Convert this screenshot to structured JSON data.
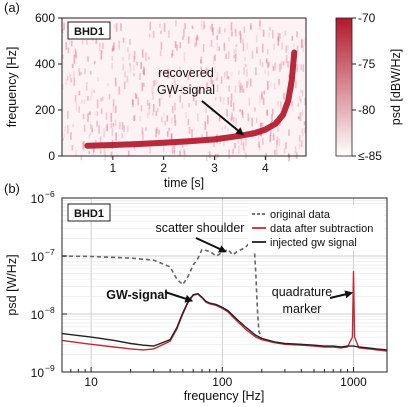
{
  "chart_data": [
    {
      "type": "heatmap",
      "panel_label": "(a)",
      "badge": "BHD1",
      "xlabel": "time [s]",
      "ylabel": "frequency [Hz]",
      "x_ticks": [
        "1",
        "2",
        "3",
        "4"
      ],
      "x_tick_values": [
        1,
        2,
        3,
        4
      ],
      "y_ticks": [
        "0",
        "200",
        "400",
        "600"
      ],
      "y_tick_values": [
        0,
        200,
        400,
        600
      ],
      "xlim": [
        0,
        4.8
      ],
      "ylim": [
        0,
        600
      ],
      "annotation": {
        "lines": [
          "recovered",
          "GW-signal"
        ],
        "points_to": {
          "time": 3.55,
          "frequency": 95
        }
      },
      "chirp_track": {
        "time": [
          0.5,
          1.0,
          1.5,
          2.0,
          2.5,
          3.0,
          3.5,
          3.8,
          4.0,
          4.2,
          4.35,
          4.45,
          4.52,
          4.57
        ],
        "frequency": [
          45,
          48,
          52,
          58,
          64,
          72,
          88,
          100,
          115,
          140,
          180,
          240,
          330,
          450
        ]
      },
      "colorbar": {
        "label": "psd [dBW/Hz]",
        "ticks": [
          "-70",
          "-75",
          "-80",
          "≤-85"
        ],
        "tick_values": [
          -70,
          -75,
          -80,
          -85
        ],
        "range": [
          -85,
          -70
        ],
        "color_low": "#ffffff",
        "color_high": "#b2182b"
      }
    },
    {
      "type": "line",
      "panel_label": "(b)",
      "badge": "BHD1",
      "xlabel": "frequency [Hz]",
      "ylabel": "psd [W/Hz]",
      "x_scale": "log",
      "y_scale": "log",
      "xlim": [
        6,
        1800
      ],
      "ylim": [
        1e-09,
        1e-06
      ],
      "x_ticks": [
        "10",
        "100",
        "1000"
      ],
      "x_tick_values": [
        10,
        100,
        1000
      ],
      "y_ticks": [
        "10",
        "10",
        "10",
        "10"
      ],
      "y_tick_exponents": [
        "−9",
        "−8",
        "−7",
        "−6"
      ],
      "y_tick_values": [
        1e-09,
        1e-08,
        1e-07,
        1e-06
      ],
      "legend_position": "top-right",
      "series": [
        {
          "name": "original data",
          "color": "#666666",
          "dash": "dashed",
          "x": [
            6,
            10,
            20,
            30,
            40,
            45,
            50,
            55,
            60,
            65,
            70,
            80,
            90,
            100,
            110,
            120,
            130,
            150,
            165,
            175,
            180,
            185,
            190,
            200
          ],
          "y": [
            1e-07,
            9.8e-08,
            9.2e-08,
            8.5e-08,
            6.5e-08,
            4e-08,
            3.2e-08,
            4.5e-08,
            7e-08,
            9e-08,
            1.3e-07,
            1.2e-07,
            1e-07,
            1.15e-07,
            1.3e-07,
            1.05e-07,
            1.2e-07,
            1.4e-07,
            1.8e-07,
            1.5e-07,
            5e-08,
            1.2e-08,
            5e-09,
            4e-09
          ]
        },
        {
          "name": "data after subtraction",
          "color": "#c62a35",
          "dash": "solid",
          "x": [
            6,
            10,
            15,
            20,
            25,
            30,
            40,
            45,
            50,
            55,
            60,
            65,
            70,
            75,
            80,
            90,
            100,
            110,
            120,
            130,
            150,
            180,
            200,
            250,
            300,
            400,
            500,
            600,
            700,
            800,
            900,
            980,
            1000,
            1020,
            1100,
            1300,
            1500,
            1800
          ],
          "y": [
            3.5e-09,
            3e-09,
            2.7e-09,
            2.5e-09,
            2.4e-09,
            2.5e-09,
            3.4e-09,
            5.5e-09,
            1e-08,
            1.6e-08,
            2.1e-08,
            2.2e-08,
            1.9e-08,
            1.6e-08,
            1.5e-08,
            1.4e-08,
            1.25e-08,
            1.1e-08,
            9e-09,
            7.5e-09,
            5.5e-09,
            4e-09,
            3.6e-09,
            3.2e-09,
            3e-09,
            2.9e-09,
            2.8e-09,
            2.7e-09,
            2.7e-09,
            2.6e-09,
            2.7e-09,
            4e-09,
            5.5e-08,
            4e-09,
            2.6e-09,
            2.5e-09,
            2.4e-09,
            2.3e-09
          ]
        },
        {
          "name": "injected gw signal",
          "color": "#222222",
          "dash": "solid",
          "x": [
            6,
            10,
            15,
            20,
            25,
            30,
            40,
            45,
            50,
            55,
            60,
            65,
            70,
            75,
            80,
            90,
            100,
            110,
            120,
            130,
            150,
            180,
            200,
            250,
            300,
            400,
            500,
            600,
            700,
            800,
            900,
            1000,
            1100,
            1300,
            1500,
            1800
          ],
          "y": [
            4.6e-09,
            4e-09,
            3.5e-09,
            3.1e-09,
            2.9e-09,
            2.8e-09,
            3.6e-09,
            5.8e-09,
            1.05e-08,
            1.65e-08,
            2.15e-08,
            2.25e-08,
            1.95e-08,
            1.65e-08,
            1.55e-08,
            1.45e-08,
            1.3e-08,
            1.15e-08,
            9.5e-09,
            8e-09,
            6e-09,
            4.3e-09,
            3.8e-09,
            3.3e-09,
            3.1e-09,
            3e-09,
            2.9e-09,
            2.8e-09,
            2.8e-09,
            2.7e-09,
            2.8e-09,
            2.8e-09,
            2.7e-09,
            2.6e-09,
            2.5e-09,
            2.4e-09
          ]
        }
      ],
      "annotations": [
        {
          "lines": [
            "scatter shoulder"
          ],
          "points_to": {
            "x": 105,
            "y": 1.2e-07
          }
        },
        {
          "lines": [
            "GW-signal"
          ],
          "points_to": {
            "x": 58,
            "y": 1.7e-08
          }
        },
        {
          "lines": [
            "quadrature",
            "marker"
          ],
          "points_to": {
            "x": 960,
            "y": 2.3e-08
          }
        }
      ]
    }
  ]
}
